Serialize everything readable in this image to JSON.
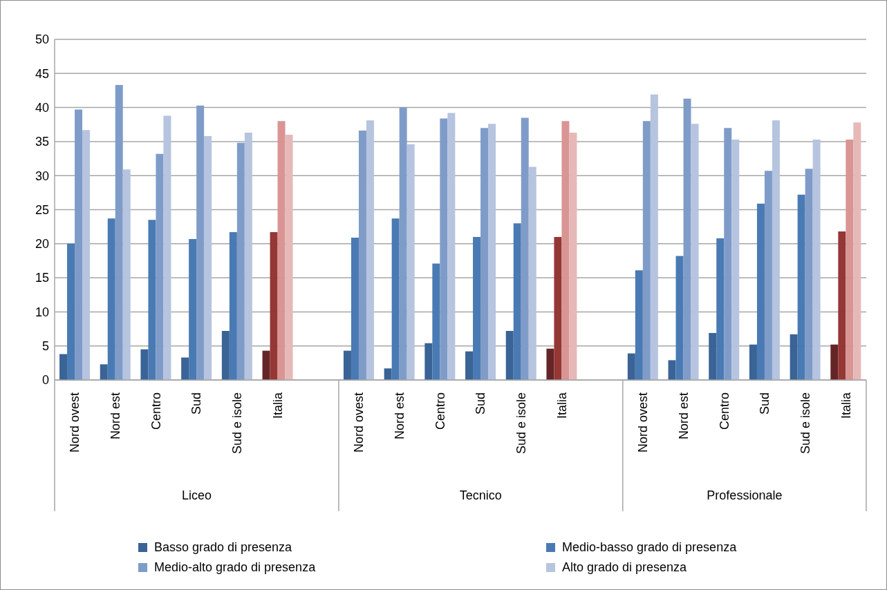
{
  "chart_data": {
    "type": "bar",
    "categories": [
      "Nord ovest",
      "Nord est",
      "Centro",
      "Sud",
      "Sud e isole",
      "Italia",
      null,
      "Nord ovest",
      "Nord est",
      "Centro",
      "Sud",
      "Sud e isole",
      "Italia",
      null,
      "Nord ovest",
      "Nord est",
      "Centro",
      "Sud",
      "Sud e isole",
      "Italia"
    ],
    "annotations": [
      "Liceo",
      "Tecnico",
      "Professionale"
    ],
    "series": [
      {
        "name": "Basso grado di presenza",
        "color": "#3a6396",
        "colors": [
          "#3a6396",
          "#3a6396",
          "#3a6396",
          "#3a6396",
          "#3a6396",
          "#652527",
          "#3a6396",
          "#3a6396",
          "#3a6396",
          "#3a6396",
          "#3a6396",
          "#3a6396",
          "#652527",
          "#3a6396",
          "#3a6396",
          "#3a6396",
          "#3a6396",
          "#3a6396",
          "#3a6396",
          "#652527"
        ],
        "values": [
          3.8,
          2.3,
          4.5,
          3.3,
          7.2,
          4.3,
          null,
          4.3,
          1.7,
          5.4,
          4.2,
          7.2,
          4.6,
          null,
          3.9,
          2.9,
          6.9,
          5.2,
          6.7,
          5.2
        ]
      },
      {
        "name": "Medio-basso grado di presenza",
        "color": "#4a7ab3",
        "colors": [
          "#4a7ab3",
          "#4a7ab3",
          "#4a7ab3",
          "#4a7ab3",
          "#4a7ab3",
          "#953735",
          "#4a7ab3",
          "#4a7ab3",
          "#4a7ab3",
          "#4a7ab3",
          "#4a7ab3",
          "#4a7ab3",
          "#953735",
          "#4a7ab3",
          "#4a7ab3",
          "#4a7ab3",
          "#4a7ab3",
          "#4a7ab3",
          "#4a7ab3",
          "#953735"
        ],
        "values": [
          20.0,
          23.7,
          23.5,
          20.7,
          21.7,
          21.7,
          null,
          20.9,
          23.7,
          17.1,
          21.0,
          23.0,
          21.0,
          null,
          16.1,
          18.2,
          20.8,
          25.9,
          27.2,
          21.8
        ]
      },
      {
        "name": "Medio-alto grado di presenza",
        "color": "#7f9cc9",
        "colors": [
          "#7f9cc9",
          "#7f9cc9",
          "#7f9cc9",
          "#7f9cc9",
          "#7f9cc9",
          "#d99594",
          "#7f9cc9",
          "#7f9cc9",
          "#7f9cc9",
          "#7f9cc9",
          "#7f9cc9",
          "#7f9cc9",
          "#d99594",
          "#7f9cc9",
          "#7f9cc9",
          "#7f9cc9",
          "#7f9cc9",
          "#7f9cc9",
          "#7f9cc9",
          "#d99594"
        ],
        "values": [
          39.7,
          43.3,
          33.2,
          40.3,
          34.8,
          38.0,
          null,
          36.6,
          40.0,
          38.4,
          37.0,
          38.5,
          38.0,
          null,
          38.0,
          41.3,
          37.0,
          30.7,
          31.0,
          35.3
        ]
      },
      {
        "name": "Alto grado di presenza",
        "color": "#b6c4df",
        "colors": [
          "#b6c4df",
          "#b6c4df",
          "#b6c4df",
          "#b6c4df",
          "#b6c4df",
          "#e6b9b8",
          "#b6c4df",
          "#b6c4df",
          "#b6c4df",
          "#b6c4df",
          "#b6c4df",
          "#b6c4df",
          "#e6b9b8",
          "#b6c4df",
          "#b6c4df",
          "#b6c4df",
          "#b6c4df",
          "#b6c4df",
          "#b6c4df",
          "#e6b9b8"
        ],
        "values": [
          36.7,
          30.9,
          38.8,
          35.8,
          36.3,
          36.0,
          null,
          38.1,
          34.6,
          39.2,
          37.6,
          31.3,
          36.3,
          null,
          41.9,
          37.6,
          35.3,
          38.1,
          35.3,
          37.8
        ]
      }
    ],
    "ylim": [
      0,
      50
    ],
    "yticks": [
      0,
      5,
      10,
      15,
      20,
      25,
      30,
      35,
      40,
      45,
      50
    ],
    "grid": "y",
    "legend": "bottom"
  }
}
